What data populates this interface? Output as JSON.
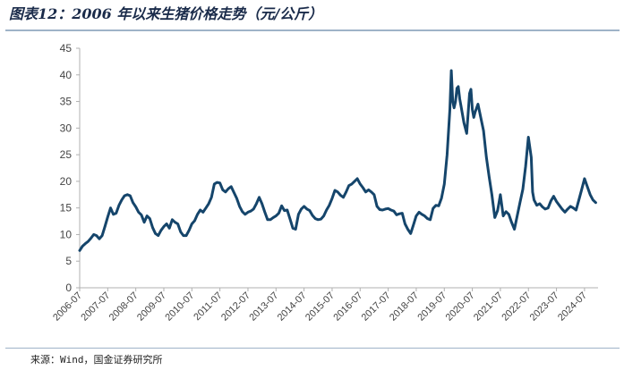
{
  "title": "图表12：2006 年以来生猪价格走势（元/公斤）",
  "source": "来源：Wind，国金证券研究所",
  "colors": {
    "line": "#15456b",
    "axis": "#b0b0b0",
    "rule": "#9fb3c8",
    "title": "#1a2b4a"
  },
  "chart_data": {
    "type": "line",
    "title": "",
    "xlabel": "",
    "ylabel": "",
    "ylim": [
      0,
      45
    ],
    "yticks": [
      0,
      5,
      10,
      15,
      20,
      25,
      30,
      35,
      40,
      45
    ],
    "xlim": [
      2006.5,
      2024.95
    ],
    "xticks": [
      {
        "label": "2006-07",
        "x": 2006.5
      },
      {
        "label": "2007-07",
        "x": 2007.5
      },
      {
        "label": "2008-07",
        "x": 2008.5
      },
      {
        "label": "2009-07",
        "x": 2009.5
      },
      {
        "label": "2010-07",
        "x": 2010.5
      },
      {
        "label": "2011-07",
        "x": 2011.5
      },
      {
        "label": "2012-07",
        "x": 2012.5
      },
      {
        "label": "2013-07",
        "x": 2013.5
      },
      {
        "label": "2014-07",
        "x": 2014.5
      },
      {
        "label": "2015-07",
        "x": 2015.5
      },
      {
        "label": "2016-07",
        "x": 2016.5
      },
      {
        "label": "2017-07",
        "x": 2017.5
      },
      {
        "label": "2018-07",
        "x": 2018.5
      },
      {
        "label": "2019-07",
        "x": 2019.5
      },
      {
        "label": "2020-07",
        "x": 2020.5
      },
      {
        "label": "2021-07",
        "x": 2021.5
      },
      {
        "label": "2022-07",
        "x": 2022.5
      },
      {
        "label": "2023-07",
        "x": 2023.5
      },
      {
        "label": "2024-07",
        "x": 2024.5
      }
    ],
    "grid": false,
    "legend": "none",
    "series": [
      {
        "x": [
          2006.5,
          2006.6,
          2006.7,
          2006.8,
          2006.9,
          2007.0,
          2007.1,
          2007.2,
          2007.3,
          2007.4,
          2007.5,
          2007.6,
          2007.7,
          2007.8,
          2007.9,
          2008.0,
          2008.1,
          2008.2,
          2008.3,
          2008.4,
          2008.5,
          2008.6,
          2008.7,
          2008.8,
          2008.9,
          2009.0,
          2009.1,
          2009.2,
          2009.3,
          2009.4,
          2009.5,
          2009.6,
          2009.7,
          2009.8,
          2009.9,
          2010.0,
          2010.1,
          2010.2,
          2010.3,
          2010.4,
          2010.5,
          2010.6,
          2010.7,
          2010.8,
          2010.9,
          2011.0,
          2011.1,
          2011.2,
          2011.3,
          2011.4,
          2011.5,
          2011.6,
          2011.7,
          2011.8,
          2011.9,
          2012.0,
          2012.1,
          2012.2,
          2012.3,
          2012.4,
          2012.5,
          2012.6,
          2012.7,
          2012.8,
          2012.9,
          2013.0,
          2013.1,
          2013.2,
          2013.3,
          2013.4,
          2013.5,
          2013.6,
          2013.7,
          2013.8,
          2013.9,
          2014.0,
          2014.1,
          2014.2,
          2014.3,
          2014.4,
          2014.5,
          2014.6,
          2014.7,
          2014.8,
          2014.9,
          2015.0,
          2015.1,
          2015.2,
          2015.3,
          2015.4,
          2015.5,
          2015.6,
          2015.7,
          2015.8,
          2015.9,
          2016.0,
          2016.1,
          2016.2,
          2016.3,
          2016.4,
          2016.5,
          2016.6,
          2016.7,
          2016.8,
          2016.9,
          2017.0,
          2017.1,
          2017.2,
          2017.3,
          2017.4,
          2017.5,
          2017.6,
          2017.7,
          2017.8,
          2017.9,
          2018.0,
          2018.1,
          2018.2,
          2018.3,
          2018.4,
          2018.5,
          2018.6,
          2018.7,
          2018.8,
          2018.9,
          2019.0,
          2019.1,
          2019.2,
          2019.3,
          2019.4,
          2019.5,
          2019.6,
          2019.7,
          2019.75,
          2019.8,
          2019.85,
          2019.9,
          2019.95,
          2020.0,
          2020.05,
          2020.1,
          2020.2,
          2020.3,
          2020.4,
          2020.45,
          2020.5,
          2020.55,
          2020.6,
          2020.7,
          2020.8,
          2020.9,
          2021.0,
          2021.1,
          2021.2,
          2021.3,
          2021.4,
          2021.45,
          2021.5,
          2021.6,
          2021.7,
          2021.8,
          2021.9,
          2022.0,
          2022.1,
          2022.2,
          2022.3,
          2022.4,
          2022.5,
          2022.6,
          2022.65,
          2022.7,
          2022.8,
          2022.9,
          2023.0,
          2023.1,
          2023.2,
          2023.3,
          2023.4,
          2023.5,
          2023.6,
          2023.7,
          2023.8,
          2023.9,
          2024.0,
          2024.1,
          2024.2,
          2024.3,
          2024.4,
          2024.5,
          2024.6,
          2024.7,
          2024.8,
          2024.9
        ],
        "values": [
          7.0,
          7.8,
          8.3,
          8.7,
          9.3,
          10.0,
          9.8,
          9.2,
          9.8,
          11.5,
          13.3,
          15.0,
          13.8,
          14.0,
          15.5,
          16.5,
          17.3,
          17.5,
          17.3,
          16.0,
          15.2,
          14.2,
          13.7,
          12.3,
          13.5,
          13.0,
          11.3,
          10.2,
          9.8,
          10.8,
          11.5,
          12.0,
          11.2,
          12.8,
          12.3,
          12.0,
          10.5,
          9.8,
          9.8,
          10.8,
          12.0,
          12.6,
          13.8,
          14.6,
          14.2,
          15.0,
          15.8,
          17.0,
          19.5,
          19.8,
          19.7,
          18.4,
          18.0,
          18.6,
          19.0,
          17.9,
          16.8,
          15.3,
          14.3,
          13.8,
          14.2,
          14.4,
          14.8,
          15.8,
          17.0,
          15.8,
          14.2,
          12.8,
          12.8,
          13.2,
          13.5,
          14.0,
          15.4,
          14.5,
          14.6,
          12.9,
          11.2,
          11.0,
          13.8,
          14.8,
          15.3,
          14.8,
          14.5,
          13.6,
          13.0,
          12.8,
          12.9,
          13.5,
          14.6,
          15.5,
          16.8,
          18.3,
          18.0,
          17.4,
          17.0,
          18.0,
          19.2,
          19.5,
          20.0,
          20.5,
          19.5,
          18.8,
          18.0,
          18.4,
          18.0,
          17.5,
          15.3,
          14.7,
          14.6,
          14.8,
          14.9,
          14.6,
          14.4,
          13.7,
          13.9,
          14.0,
          12.0,
          11.0,
          10.2,
          11.8,
          13.5,
          14.2,
          13.8,
          13.5,
          13.0,
          12.8,
          14.9,
          15.5,
          15.4,
          16.8,
          19.5,
          25.0,
          33.5,
          40.8,
          35.0,
          33.8,
          35.0,
          37.5,
          37.8,
          35.5,
          34.0,
          31.0,
          29.0,
          36.5,
          37.3,
          33.5,
          32.0,
          33.0,
          34.5,
          32.0,
          29.5,
          24.5,
          20.8,
          17.4,
          13.2,
          14.5,
          16.0,
          17.5,
          13.5,
          14.3,
          13.8,
          12.3,
          11.0,
          13.5,
          16.0,
          18.5,
          22.8,
          28.3,
          24.5,
          18.0,
          16.5,
          15.5,
          15.8,
          15.2,
          14.8,
          15.0,
          16.3,
          17.2,
          16.2,
          15.5,
          14.8,
          14.2,
          14.8,
          15.3,
          15.0,
          14.6,
          16.5,
          18.5,
          20.5,
          19.0,
          17.5,
          16.5,
          16.0
        ]
      }
    ]
  }
}
